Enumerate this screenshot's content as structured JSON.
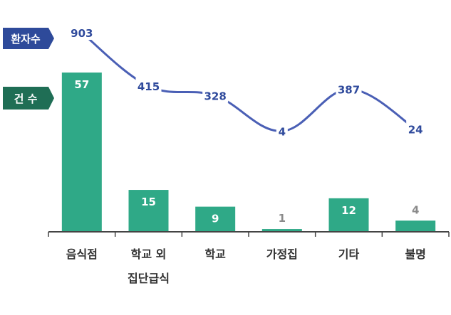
{
  "chart_data": {
    "type": "bar",
    "categories": [
      "음식점",
      "학교 외\n집단급식",
      "학교",
      "가정집",
      "기타",
      "불명"
    ],
    "series": [
      {
        "name": "건 수",
        "type": "bar",
        "values": [
          57,
          15,
          9,
          1,
          12,
          4
        ],
        "color": "#2fa987"
      },
      {
        "name": "환자수",
        "type": "line",
        "values": [
          903,
          415,
          328,
          4,
          387,
          24
        ],
        "color": "#4a5fb5"
      }
    ],
    "legend": {
      "line": {
        "label": "환자수",
        "color": "#2e4a9a"
      },
      "bar": {
        "label": "건 수",
        "color": "#1f6e55"
      }
    },
    "label_colors": {
      "bar_inside": "#ffffff",
      "bar_outside": "#8a8a8a",
      "line": "#2f4a9c"
    }
  }
}
